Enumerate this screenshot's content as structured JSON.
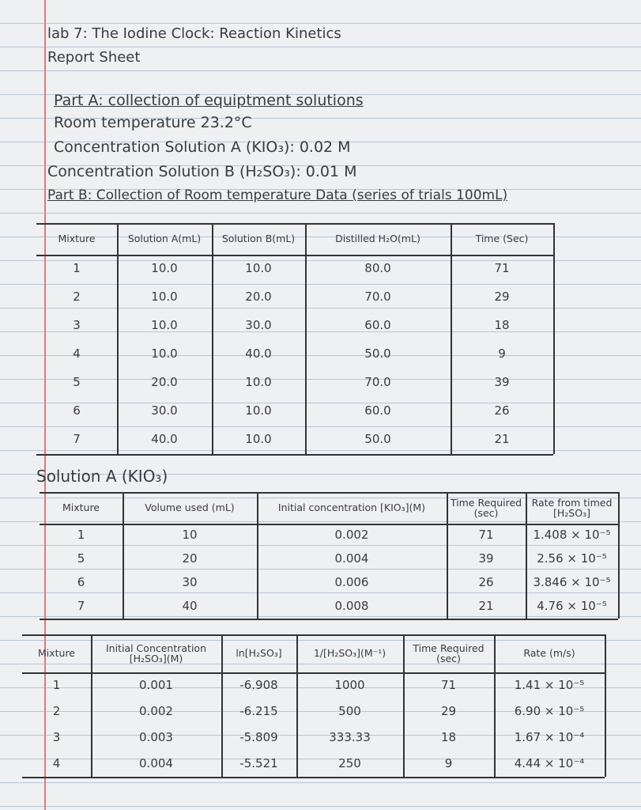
{
  "header": {
    "title": "lab 7: The Iodine Clock: Reaction Kinetics",
    "subtitle": "Report Sheet",
    "part_a": "Part A: collection of equiptment solutions",
    "room_temperature": "Room temperature 23.2°C",
    "concentration_a": "Concentration Solution A (KIO₃): 0.02 M",
    "concentration_b": "Concentration Solution B (H₂SO₃): 0.01 M",
    "part_b": "Part B: Collection of Room temperature Data (series of trials 100mL)"
  },
  "table1": {
    "headers": [
      "Mixture",
      "Solution A(mL)",
      "Solution B(mL)",
      "Distilled H₂O(mL)",
      "Time (Sec)"
    ],
    "rows": [
      [
        "1",
        "10.0",
        "10.0",
        "80.0",
        "71"
      ],
      [
        "2",
        "10.0",
        "20.0",
        "70.0",
        "29"
      ],
      [
        "3",
        "10.0",
        "30.0",
        "60.0",
        "18"
      ],
      [
        "4",
        "10.0",
        "40.0",
        "50.0",
        "9"
      ],
      [
        "5",
        "20.0",
        "10.0",
        "70.0",
        "39"
      ],
      [
        "6",
        "30.0",
        "10.0",
        "60.0",
        "26"
      ],
      [
        "7",
        "40.0",
        "10.0",
        "50.0",
        "21"
      ]
    ]
  },
  "section_solution_a": "Solution A (KIO₃)",
  "table2": {
    "headers": [
      "Mixture",
      "Volume used (mL)",
      "Initial concentration [KIO₃](M)",
      "Time Required (sec)",
      "Rate from timed [H₂SO₃]"
    ],
    "rows": [
      [
        "1",
        "10",
        "0.002",
        "71",
        "1.408 × 10⁻⁵"
      ],
      [
        "5",
        "20",
        "0.004",
        "39",
        "2.56 × 10⁻⁵"
      ],
      [
        "6",
        "30",
        "0.006",
        "26",
        "3.846 × 10⁻⁵"
      ],
      [
        "7",
        "40",
        "0.008",
        "21",
        "4.76 × 10⁻⁵"
      ]
    ]
  },
  "table3": {
    "headers": [
      "Mixture",
      "Initial Concentration [H₂SO₃](M)",
      "ln[H₂SO₃]",
      "1/[H₂SO₃](M⁻¹)",
      "Time Required (sec)",
      "Rate (m/s)"
    ],
    "rows": [
      [
        "1",
        "0.001",
        "-6.908",
        "1000",
        "71",
        "1.41 × 10⁻⁵"
      ],
      [
        "2",
        "0.002",
        "-6.215",
        "500",
        "29",
        "6.90 × 10⁻⁵"
      ],
      [
        "3",
        "0.003",
        "-5.809",
        "333.33",
        "18",
        "1.67 × 10⁻⁴"
      ],
      [
        "4",
        "0.004",
        "-5.521",
        "250",
        "9",
        "4.44 × 10⁻⁴"
      ]
    ]
  }
}
